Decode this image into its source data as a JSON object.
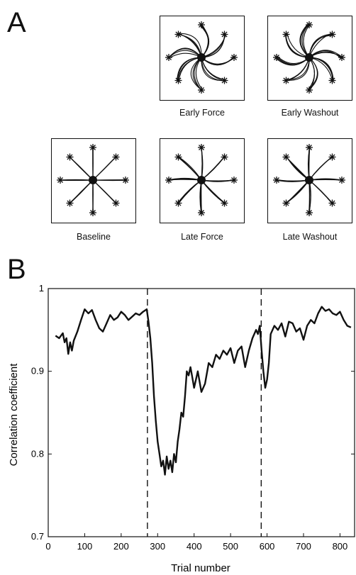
{
  "panel_a": {
    "letter": "A",
    "panels": [
      {
        "id": "early-force",
        "caption": "Early Force",
        "curl": 0.9,
        "spread": 0.35
      },
      {
        "id": "early-washout",
        "caption": "Early Washout",
        "curl": -0.8,
        "spread": 0.35
      },
      {
        "id": "baseline",
        "caption": "Baseline",
        "curl": 0.0,
        "spread": 0.08
      },
      {
        "id": "late-force",
        "caption": "Late Force",
        "curl": 0.12,
        "spread": 0.12
      },
      {
        "id": "late-washout",
        "caption": "Late Washout",
        "curl": -0.1,
        "spread": 0.14
      }
    ]
  },
  "panel_b": {
    "letter": "B"
  },
  "chart_data": {
    "type": "line",
    "title": "",
    "xlabel": "Trial number",
    "ylabel": "Correlation coefficient",
    "xlim": [
      0,
      840
    ],
    "ylim": [
      0.7,
      1.0
    ],
    "xticks": [
      0,
      100,
      200,
      300,
      400,
      500,
      600,
      700,
      800
    ],
    "yticks": [
      0.7,
      0.8,
      0.9,
      1.0
    ],
    "ytick_labels": [
      "0.7",
      "0.8",
      "0.9",
      "1"
    ],
    "grid": false,
    "vlines": [
      272,
      584
    ],
    "series": [
      {
        "name": "",
        "x": [
          20,
          30,
          40,
          45,
          50,
          55,
          60,
          65,
          70,
          80,
          90,
          100,
          110,
          120,
          130,
          140,
          150,
          160,
          170,
          180,
          190,
          200,
          210,
          220,
          230,
          240,
          250,
          260,
          270,
          275,
          280,
          285,
          290,
          295,
          300,
          305,
          310,
          315,
          320,
          325,
          330,
          335,
          340,
          345,
          350,
          355,
          360,
          365,
          370,
          375,
          380,
          385,
          390,
          395,
          400,
          410,
          420,
          430,
          440,
          450,
          460,
          470,
          480,
          490,
          500,
          510,
          520,
          530,
          540,
          550,
          560,
          570,
          575,
          580,
          585,
          590,
          595,
          600,
          605,
          610,
          620,
          630,
          640,
          650,
          660,
          670,
          680,
          690,
          700,
          710,
          720,
          730,
          740,
          750,
          760,
          770,
          780,
          790,
          800,
          810,
          820,
          830
        ],
        "values": [
          0.943,
          0.94,
          0.946,
          0.935,
          0.94,
          0.921,
          0.935,
          0.925,
          0.937,
          0.948,
          0.962,
          0.975,
          0.97,
          0.974,
          0.962,
          0.952,
          0.948,
          0.958,
          0.968,
          0.962,
          0.965,
          0.972,
          0.968,
          0.962,
          0.966,
          0.97,
          0.968,
          0.972,
          0.975,
          0.96,
          0.94,
          0.91,
          0.87,
          0.84,
          0.815,
          0.8,
          0.785,
          0.792,
          0.775,
          0.797,
          0.782,
          0.792,
          0.778,
          0.8,
          0.79,
          0.815,
          0.83,
          0.85,
          0.845,
          0.87,
          0.9,
          0.895,
          0.905,
          0.893,
          0.88,
          0.9,
          0.875,
          0.885,
          0.91,
          0.905,
          0.92,
          0.915,
          0.925,
          0.92,
          0.928,
          0.91,
          0.925,
          0.93,
          0.905,
          0.925,
          0.94,
          0.95,
          0.945,
          0.955,
          0.925,
          0.9,
          0.88,
          0.89,
          0.91,
          0.945,
          0.955,
          0.95,
          0.958,
          0.942,
          0.96,
          0.958,
          0.948,
          0.952,
          0.938,
          0.955,
          0.962,
          0.958,
          0.97,
          0.978,
          0.973,
          0.975,
          0.97,
          0.968,
          0.972,
          0.962,
          0.955,
          0.953
        ]
      }
    ]
  }
}
